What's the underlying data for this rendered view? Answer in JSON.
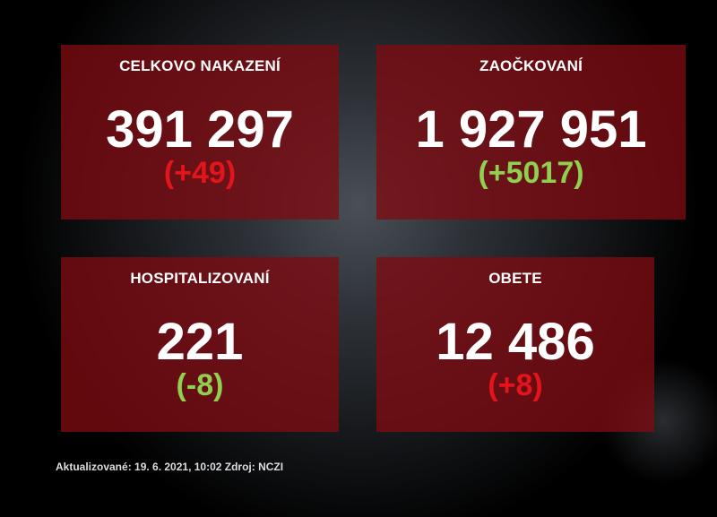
{
  "panels": [
    {
      "title": "CELKOVO NAKAZENÍ",
      "value": "391 297",
      "delta": "(+49)",
      "delta_color": "#e3141b"
    },
    {
      "title": "ZAOČKOVANÍ",
      "value": "1 927 951",
      "delta": "(+5017)",
      "delta_color": "#8fd14f"
    },
    {
      "title": "HOSPITALIZOVANÍ",
      "value": "221",
      "delta": "(-8)",
      "delta_color": "#8fd14f"
    },
    {
      "title": "OBETE",
      "value": "12 486",
      "delta": "(+8)",
      "delta_color": "#e3141b"
    }
  ],
  "footer": "Aktualizované: 19. 6. 2021, 10:02  Zdroj: NCZI",
  "colors": {
    "panel": "#7d0c12",
    "background": "#000000"
  }
}
